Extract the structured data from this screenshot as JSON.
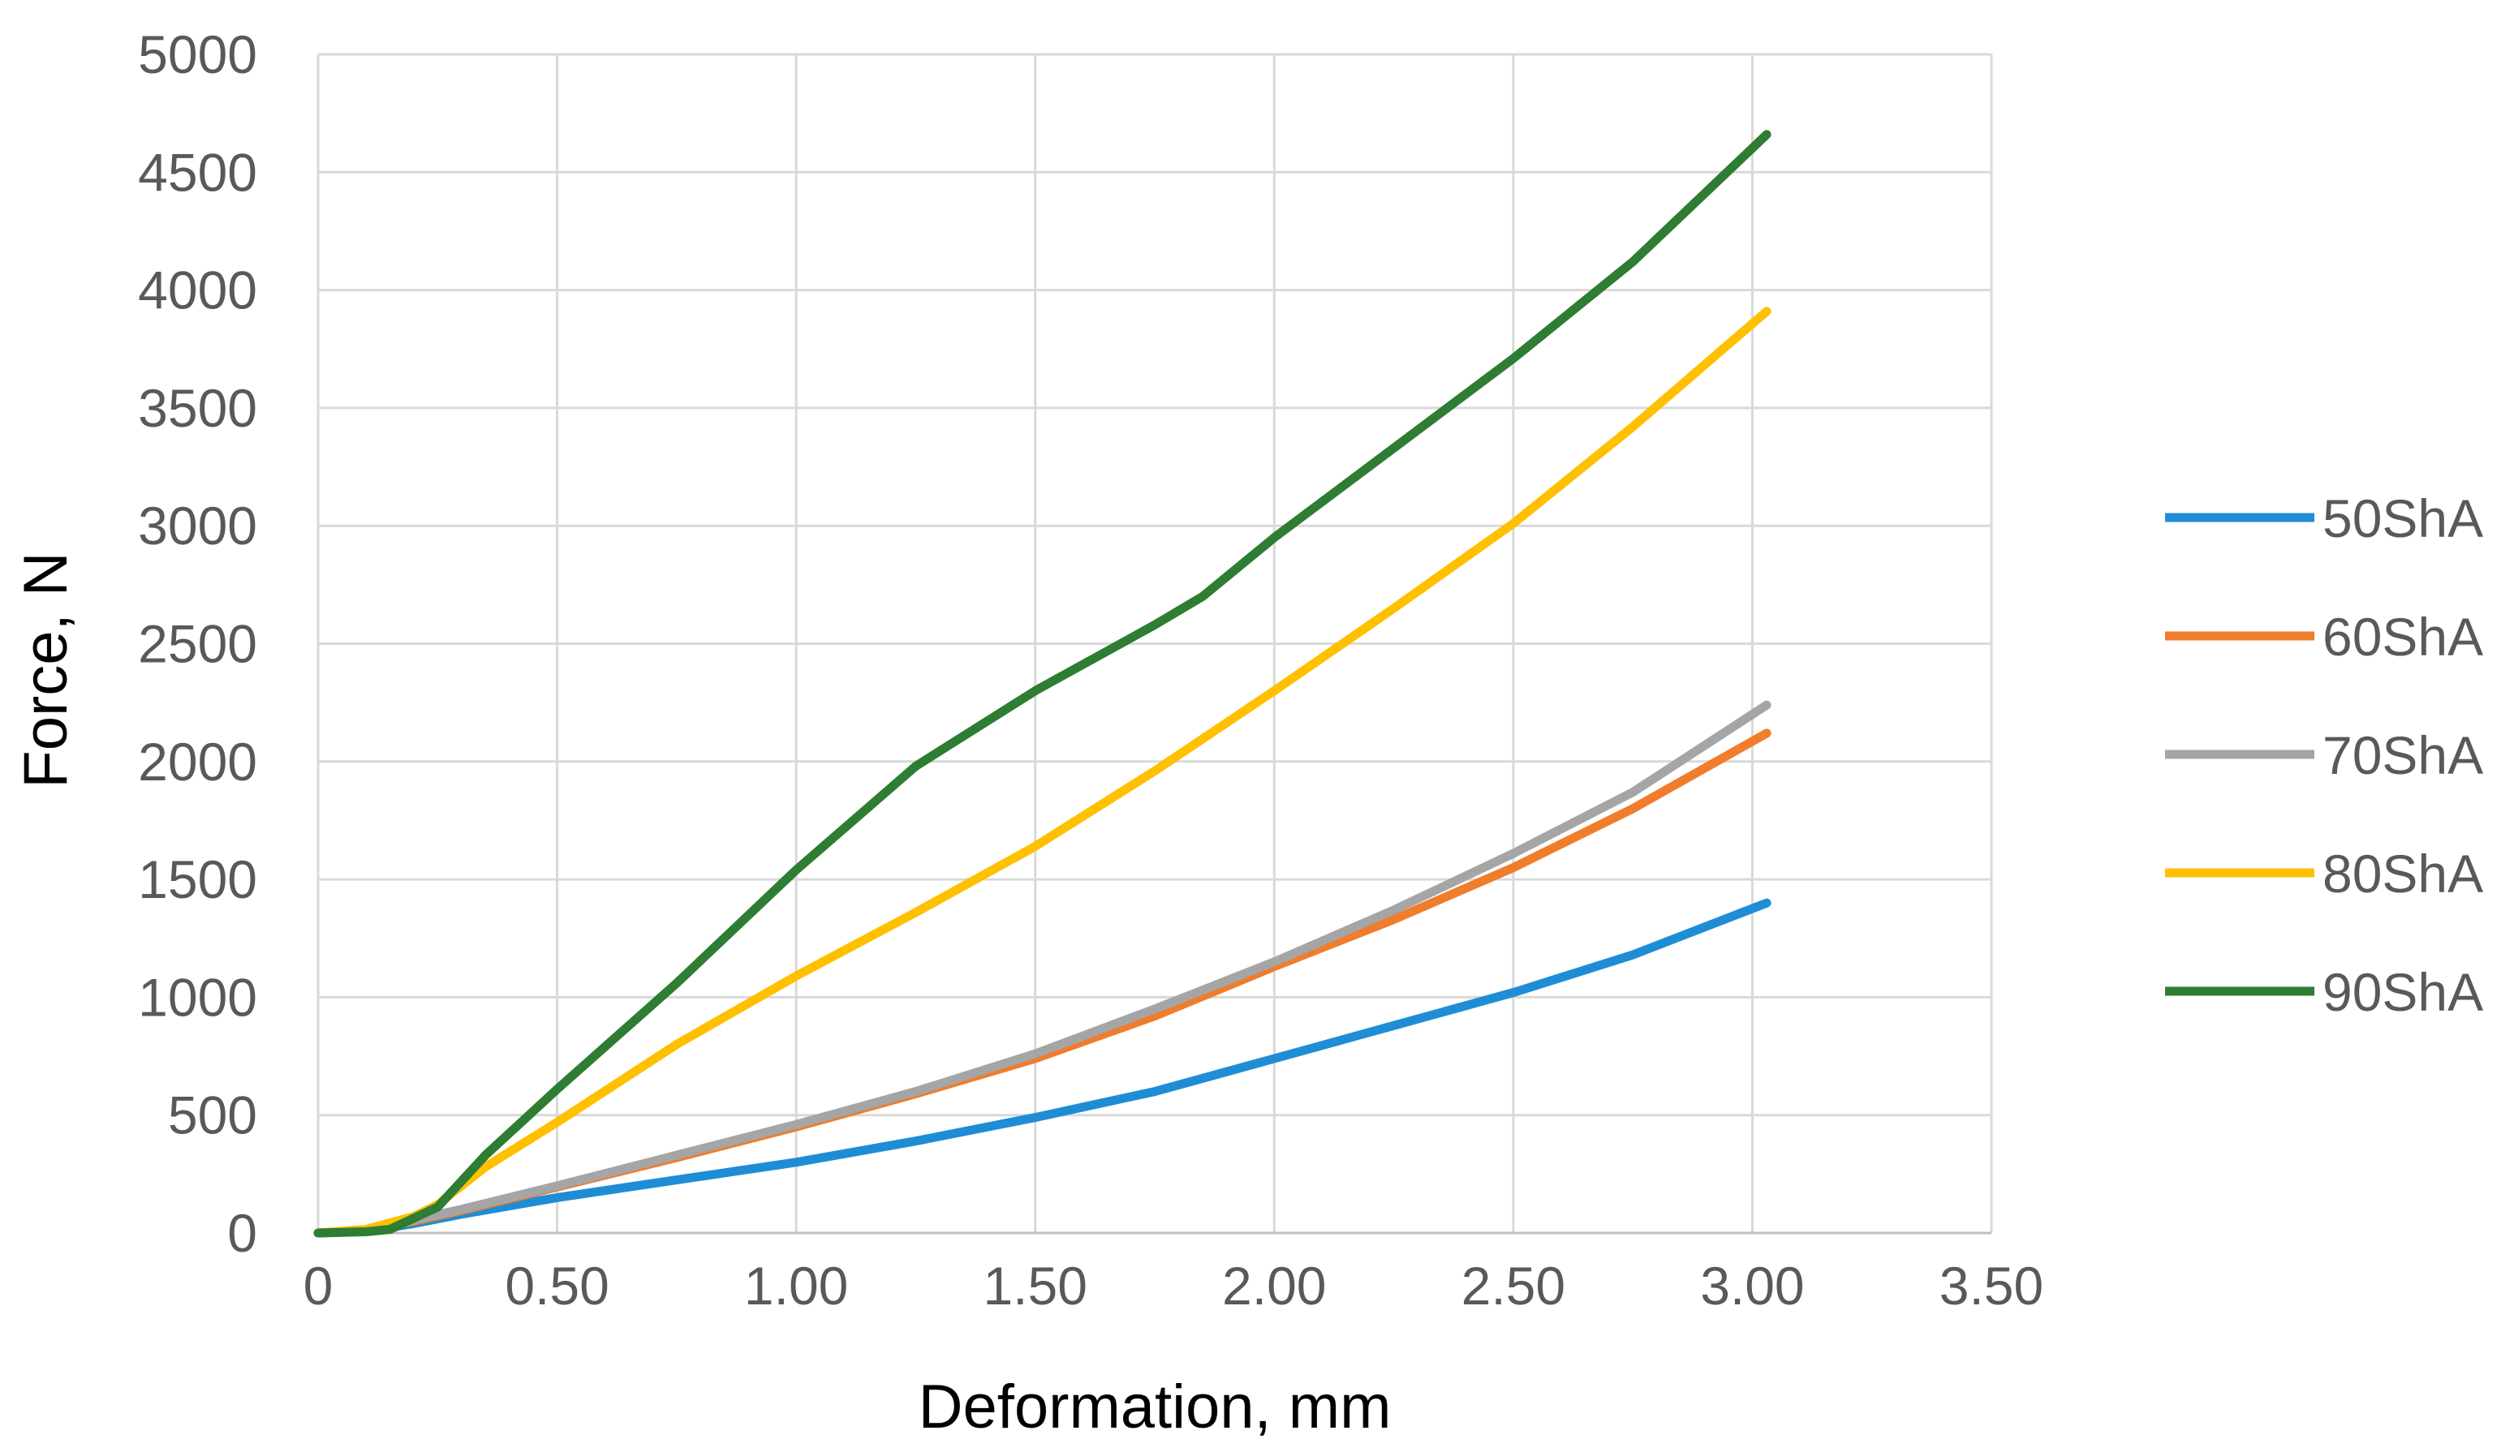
{
  "chart_data": {
    "type": "line",
    "xlabel": "Deformation, mm",
    "ylabel": "Force, N",
    "xlim": [
      0,
      3.5
    ],
    "ylim": [
      0,
      5000
    ],
    "x_ticks": [
      "0",
      "0.50",
      "1.00",
      "1.50",
      "2.00",
      "2.50",
      "3.00",
      "3.50"
    ],
    "y_ticks": [
      "0",
      "500",
      "1000",
      "1500",
      "2000",
      "2500",
      "3000",
      "3500",
      "4000",
      "4500",
      "5000"
    ],
    "grid": true,
    "legend_position": "right",
    "series": [
      {
        "name": "50ShA",
        "color": "#1f8dd6",
        "points": [
          [
            0,
            0
          ],
          [
            0.1,
            8
          ],
          [
            0.2,
            40
          ],
          [
            0.3,
            80
          ],
          [
            0.5,
            150
          ],
          [
            0.75,
            225
          ],
          [
            1.0,
            300
          ],
          [
            1.25,
            390
          ],
          [
            1.5,
            490
          ],
          [
            1.75,
            600
          ],
          [
            2.0,
            740
          ],
          [
            2.25,
            880
          ],
          [
            2.5,
            1020
          ],
          [
            2.75,
            1180
          ],
          [
            3.03,
            1400
          ]
        ]
      },
      {
        "name": "60ShA",
        "color": "#ef7d2b",
        "points": [
          [
            0,
            0
          ],
          [
            0.1,
            10
          ],
          [
            0.2,
            50
          ],
          [
            0.3,
            95
          ],
          [
            0.5,
            195
          ],
          [
            0.75,
            320
          ],
          [
            1.0,
            450
          ],
          [
            1.25,
            590
          ],
          [
            1.5,
            740
          ],
          [
            1.75,
            920
          ],
          [
            2.0,
            1130
          ],
          [
            2.25,
            1330
          ],
          [
            2.5,
            1550
          ],
          [
            2.75,
            1800
          ],
          [
            3.03,
            2120
          ]
        ]
      },
      {
        "name": "70ShA",
        "color": "#a5a5a5",
        "points": [
          [
            0,
            0
          ],
          [
            0.1,
            12
          ],
          [
            0.2,
            55
          ],
          [
            0.3,
            100
          ],
          [
            0.5,
            200
          ],
          [
            0.75,
            330
          ],
          [
            1.0,
            460
          ],
          [
            1.25,
            600
          ],
          [
            1.5,
            760
          ],
          [
            1.75,
            950
          ],
          [
            2.0,
            1150
          ],
          [
            2.25,
            1370
          ],
          [
            2.5,
            1610
          ],
          [
            2.75,
            1870
          ],
          [
            3.03,
            2240
          ]
        ]
      },
      {
        "name": "80ShA",
        "color": "#ffc000",
        "points": [
          [
            0,
            0
          ],
          [
            0.1,
            15
          ],
          [
            0.2,
            70
          ],
          [
            0.25,
            120
          ],
          [
            0.35,
            280
          ],
          [
            0.5,
            470
          ],
          [
            0.75,
            800
          ],
          [
            1.0,
            1090
          ],
          [
            1.25,
            1360
          ],
          [
            1.5,
            1640
          ],
          [
            1.75,
            1960
          ],
          [
            2.0,
            2300
          ],
          [
            2.25,
            2650
          ],
          [
            2.5,
            3010
          ],
          [
            2.75,
            3420
          ],
          [
            3.03,
            3910
          ]
        ]
      },
      {
        "name": "90ShA",
        "color": "#2e7d32",
        "points": [
          [
            0,
            0
          ],
          [
            0.1,
            5
          ],
          [
            0.15,
            15
          ],
          [
            0.25,
            110
          ],
          [
            0.35,
            330
          ],
          [
            0.5,
            610
          ],
          [
            0.75,
            1060
          ],
          [
            1.0,
            1540
          ],
          [
            1.25,
            1980
          ],
          [
            1.5,
            2300
          ],
          [
            1.75,
            2580
          ],
          [
            1.85,
            2700
          ],
          [
            2.0,
            2950
          ],
          [
            2.25,
            3330
          ],
          [
            2.5,
            3710
          ],
          [
            2.75,
            4120
          ],
          [
            3.03,
            4660
          ]
        ]
      }
    ]
  }
}
